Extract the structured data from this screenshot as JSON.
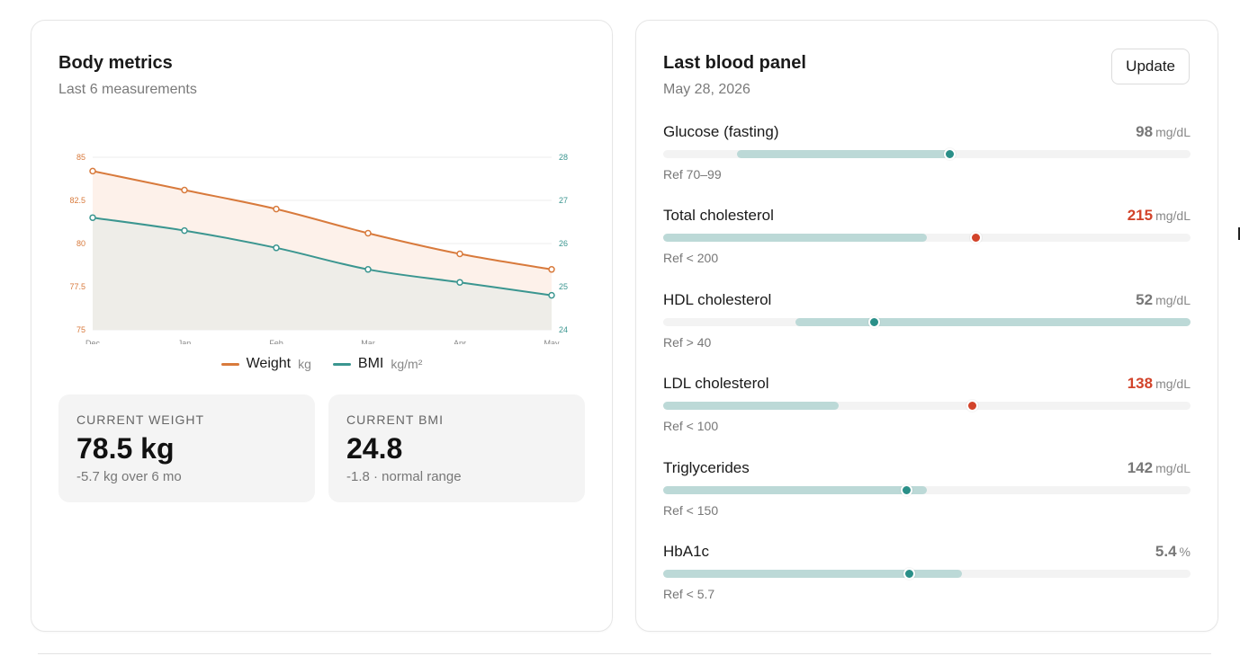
{
  "body_metrics": {
    "title": "Body metrics",
    "subtitle": "Last 6 measurements",
    "legend": [
      {
        "name": "Weight",
        "unit": "kg",
        "color": "#d87a3c"
      },
      {
        "name": "BMI",
        "unit": "kg/m²",
        "color": "#3b9690"
      }
    ],
    "stats": [
      {
        "label": "CURRENT WEIGHT",
        "value": "78.5 kg",
        "note": "-5.7 kg over 6 mo"
      },
      {
        "label": "CURRENT BMI",
        "value": "24.8",
        "note": "-1.8 · normal range"
      }
    ]
  },
  "chart_data": {
    "type": "line",
    "title": "",
    "xlabel": "",
    "ylabel": "",
    "categories": [
      "Dec",
      "Jan",
      "Feb",
      "Mar",
      "Apr",
      "May"
    ],
    "y_left": {
      "range": [
        75,
        85
      ],
      "ticks": [
        "75",
        "77.5",
        "80",
        "82.5",
        "85"
      ],
      "color": "#d87a3c"
    },
    "y_right": {
      "range": [
        24,
        28
      ],
      "ticks": [
        "24",
        "25",
        "26",
        "27",
        "28"
      ],
      "color": "#3b9690"
    },
    "series": [
      {
        "name": "Weight",
        "axis": "left",
        "values": [
          84.2,
          83.1,
          82.0,
          80.6,
          79.4,
          78.5
        ],
        "color": "#d87a3c",
        "fill": "#fdf1ea"
      },
      {
        "name": "BMI",
        "axis": "right",
        "values": [
          26.6,
          26.3,
          25.9,
          25.4,
          25.1,
          24.8
        ],
        "color": "#3b9690",
        "fill": "#eeede8"
      }
    ],
    "grid": true
  },
  "blood_panel": {
    "title": "Last blood panel",
    "date": "May 28, 2026",
    "update_label": "Update",
    "metrics": [
      {
        "name": "Glucose (fasting)",
        "value": "98",
        "unit": "mg/dL",
        "ref": "Ref 70–99",
        "flag": "normal",
        "range_start": 0.14,
        "range_end": 0.545,
        "marker": 0.542
      },
      {
        "name": "Total cholesterol",
        "value": "215",
        "unit": "mg/dL",
        "ref": "Ref < 200",
        "flag": "high",
        "range_start": 0.0,
        "range_end": 0.5,
        "marker": 0.592
      },
      {
        "name": "HDL cholesterol",
        "value": "52",
        "unit": "mg/dL",
        "ref": "Ref > 40",
        "flag": "normal",
        "range_start": 0.25,
        "range_end": 1.0,
        "marker": 0.399
      },
      {
        "name": "LDL cholesterol",
        "value": "138",
        "unit": "mg/dL",
        "ref": "Ref < 100",
        "flag": "high",
        "range_start": 0.0,
        "range_end": 0.333,
        "marker": 0.586
      },
      {
        "name": "Triglycerides",
        "value": "142",
        "unit": "mg/dL",
        "ref": "Ref < 150",
        "flag": "normal",
        "range_start": 0.0,
        "range_end": 0.5,
        "marker": 0.46
      },
      {
        "name": "HbA1c",
        "value": "5.4",
        "unit": "%",
        "ref": "Ref < 5.7",
        "flag": "normal",
        "range_start": 0.0,
        "range_end": 0.567,
        "marker": 0.466
      }
    ],
    "colors": {
      "normal": "#2a8f88",
      "high": "#d2432a"
    }
  }
}
